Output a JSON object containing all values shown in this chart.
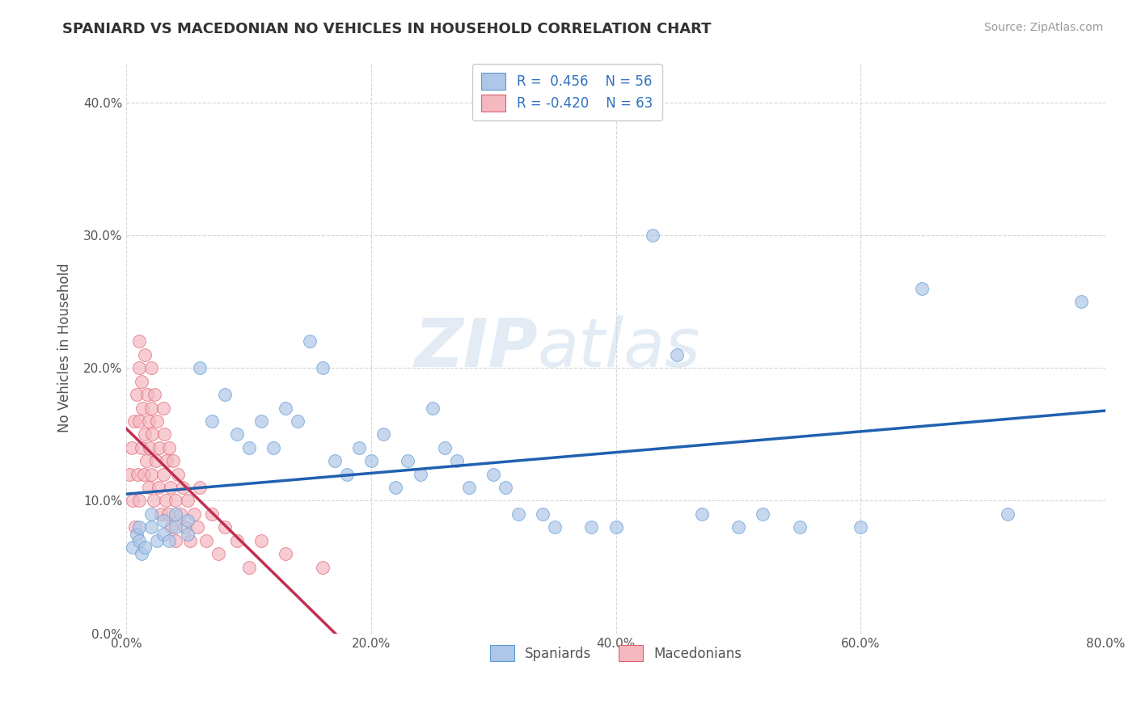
{
  "title": "SPANIARD VS MACEDONIAN NO VEHICLES IN HOUSEHOLD CORRELATION CHART",
  "source": "Source: ZipAtlas.com",
  "ylabel_label": "No Vehicles in Household",
  "xlim": [
    0.0,
    0.8
  ],
  "ylim": [
    0.0,
    0.43
  ],
  "legend_entries": [
    {
      "label": "Spaniards",
      "color": "#aec6e8",
      "edge": "#5b9bd5",
      "r": "0.456",
      "n": "56"
    },
    {
      "label": "Macedonians",
      "color": "#f4b8c1",
      "edge": "#e06070",
      "r": "-0.420",
      "n": "63"
    }
  ],
  "trend_spaniard_color": "#2060b0",
  "trend_macedonian_color": "#c03050",
  "spaniard_x": [
    0.005,
    0.008,
    0.01,
    0.01,
    0.012,
    0.015,
    0.02,
    0.02,
    0.025,
    0.03,
    0.03,
    0.035,
    0.04,
    0.04,
    0.05,
    0.05,
    0.06,
    0.07,
    0.08,
    0.09,
    0.1,
    0.11,
    0.12,
    0.13,
    0.14,
    0.15,
    0.16,
    0.17,
    0.18,
    0.19,
    0.2,
    0.21,
    0.22,
    0.23,
    0.24,
    0.25,
    0.26,
    0.27,
    0.28,
    0.3,
    0.31,
    0.32,
    0.34,
    0.35,
    0.38,
    0.4,
    0.43,
    0.45,
    0.47,
    0.5,
    0.52,
    0.55,
    0.6,
    0.65,
    0.72,
    0.78
  ],
  "spaniard_y": [
    0.065,
    0.075,
    0.07,
    0.08,
    0.06,
    0.065,
    0.08,
    0.09,
    0.07,
    0.075,
    0.085,
    0.07,
    0.08,
    0.09,
    0.075,
    0.085,
    0.2,
    0.16,
    0.18,
    0.15,
    0.14,
    0.16,
    0.14,
    0.17,
    0.16,
    0.22,
    0.2,
    0.13,
    0.12,
    0.14,
    0.13,
    0.15,
    0.11,
    0.13,
    0.12,
    0.17,
    0.14,
    0.13,
    0.11,
    0.12,
    0.11,
    0.09,
    0.09,
    0.08,
    0.08,
    0.08,
    0.3,
    0.21,
    0.09,
    0.08,
    0.09,
    0.08,
    0.08,
    0.26,
    0.09,
    0.25
  ],
  "macedonian_x": [
    0.002,
    0.004,
    0.005,
    0.006,
    0.007,
    0.008,
    0.009,
    0.01,
    0.01,
    0.01,
    0.01,
    0.012,
    0.012,
    0.013,
    0.014,
    0.015,
    0.015,
    0.016,
    0.017,
    0.018,
    0.018,
    0.019,
    0.02,
    0.02,
    0.02,
    0.021,
    0.022,
    0.023,
    0.024,
    0.025,
    0.026,
    0.027,
    0.028,
    0.03,
    0.03,
    0.031,
    0.032,
    0.033,
    0.034,
    0.035,
    0.036,
    0.037,
    0.038,
    0.04,
    0.04,
    0.042,
    0.044,
    0.046,
    0.048,
    0.05,
    0.052,
    0.055,
    0.058,
    0.06,
    0.065,
    0.07,
    0.075,
    0.08,
    0.09,
    0.1,
    0.11,
    0.13,
    0.16
  ],
  "macedonian_y": [
    0.12,
    0.14,
    0.1,
    0.16,
    0.08,
    0.18,
    0.12,
    0.2,
    0.16,
    0.22,
    0.1,
    0.19,
    0.14,
    0.17,
    0.12,
    0.21,
    0.15,
    0.13,
    0.18,
    0.11,
    0.16,
    0.14,
    0.2,
    0.17,
    0.12,
    0.15,
    0.1,
    0.18,
    0.13,
    0.16,
    0.11,
    0.14,
    0.09,
    0.17,
    0.12,
    0.15,
    0.1,
    0.13,
    0.09,
    0.14,
    0.11,
    0.08,
    0.13,
    0.1,
    0.07,
    0.12,
    0.09,
    0.11,
    0.08,
    0.1,
    0.07,
    0.09,
    0.08,
    0.11,
    0.07,
    0.09,
    0.06,
    0.08,
    0.07,
    0.05,
    0.07,
    0.06,
    0.05
  ],
  "background_color": "#ffffff",
  "grid_color": "#cccccc",
  "title_color": "#333333",
  "axis_label_color": "#555555",
  "legend_text_color": "#3070c0"
}
